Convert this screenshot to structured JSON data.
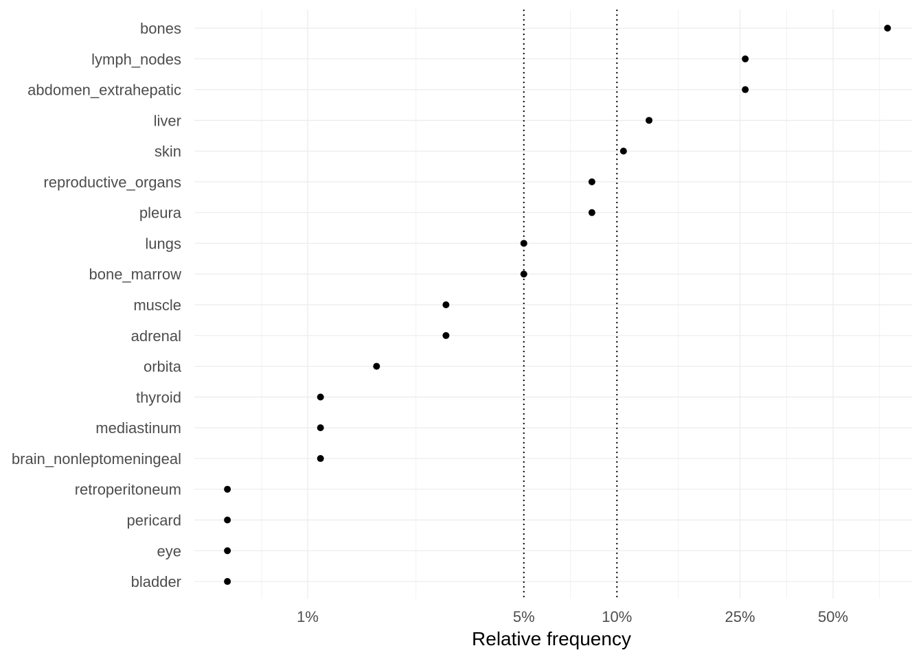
{
  "chart_data": {
    "type": "scatter",
    "xlabel": "Relative frequency",
    "ylabel": "",
    "x_scale": "log",
    "xlim": [
      0.0043,
      0.9
    ],
    "grid": true,
    "legend": "none",
    "x_ticks": [
      {
        "value": 0.01,
        "label": "1%"
      },
      {
        "value": 0.05,
        "label": "5%"
      },
      {
        "value": 0.1,
        "label": "10%"
      },
      {
        "value": 0.25,
        "label": "25%"
      },
      {
        "value": 0.5,
        "label": "50%"
      }
    ],
    "x_minor": [
      0.0071,
      0.0224,
      0.0707,
      0.158,
      0.354,
      0.707
    ],
    "reference_lines": [
      0.05,
      0.1
    ],
    "categories": [
      "bones",
      "lymph_nodes",
      "abdomen_extrahepatic",
      "liver",
      "skin",
      "reproductive_organs",
      "pleura",
      "lungs",
      "bone_marrow",
      "muscle",
      "adrenal",
      "orbita",
      "thyroid",
      "mediastinum",
      "brain_nonleptomeningeal",
      "retroperitoneum",
      "pericard",
      "eye",
      "bladder"
    ],
    "values": [
      0.75,
      0.26,
      0.26,
      0.127,
      0.105,
      0.083,
      0.083,
      0.05,
      0.05,
      0.028,
      0.028,
      0.0167,
      0.011,
      0.011,
      0.011,
      0.0055,
      0.0055,
      0.0055,
      0.0055
    ],
    "point_color": "#000000"
  }
}
